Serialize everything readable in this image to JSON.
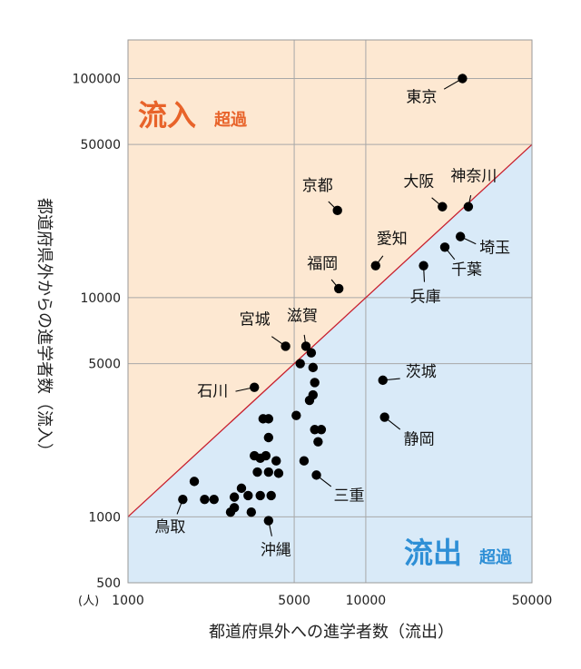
{
  "chart_data": {
    "type": "scatter",
    "x_scale": "log",
    "y_scale": "log",
    "xlim": [
      1000,
      50000
    ],
    "ylim": [
      500,
      150000
    ],
    "xlabel": "都道府県外への進学者数（流出）",
    "ylabel": "都道府県外からの進学者数（流入）",
    "unit_label": "(人)",
    "x_ticks": [
      "1000",
      "5000",
      "10000",
      "50000"
    ],
    "x_tick_values": [
      1000,
      5000,
      10000,
      50000
    ],
    "y_ticks": [
      "500",
      "1000",
      "5000",
      "10000",
      "50000",
      "100000"
    ],
    "y_tick_values": [
      500,
      1000,
      5000,
      10000,
      50000,
      100000
    ],
    "grid": true,
    "reference_line": "y = x",
    "regions": {
      "inflow": {
        "main": "流入",
        "sub": "超過",
        "color": "#e8632a",
        "fill": "#fde8d2"
      },
      "outflow": {
        "main": "流出",
        "sub": "超過",
        "color": "#2e8fd6",
        "fill": "#d9eaf8"
      }
    },
    "labeled_points": [
      {
        "name": "東京",
        "x": 25500,
        "y": 100000
      },
      {
        "name": "京都",
        "x": 7600,
        "y": 25000
      },
      {
        "name": "大阪",
        "x": 21000,
        "y": 26000
      },
      {
        "name": "神奈川",
        "x": 27000,
        "y": 26000
      },
      {
        "name": "愛知",
        "x": 11000,
        "y": 14000
      },
      {
        "name": "埼玉",
        "x": 25000,
        "y": 19000
      },
      {
        "name": "千葉",
        "x": 21500,
        "y": 17000
      },
      {
        "name": "兵庫",
        "x": 17500,
        "y": 14000
      },
      {
        "name": "福岡",
        "x": 7700,
        "y": 11000
      },
      {
        "name": "宮城",
        "x": 4600,
        "y": 6000
      },
      {
        "name": "滋賀",
        "x": 5600,
        "y": 6000
      },
      {
        "name": "石川",
        "x": 3400,
        "y": 3900
      },
      {
        "name": "茨城",
        "x": 11800,
        "y": 4200
      },
      {
        "name": "静岡",
        "x": 12000,
        "y": 2850
      },
      {
        "name": "三重",
        "x": 6200,
        "y": 1550
      },
      {
        "name": "鳥取",
        "x": 1700,
        "y": 1200
      },
      {
        "name": "沖縄",
        "x": 3900,
        "y": 960
      }
    ],
    "unlabeled_points": [
      {
        "x": 5900,
        "y": 5600
      },
      {
        "x": 5300,
        "y": 5000
      },
      {
        "x": 6000,
        "y": 4800
      },
      {
        "x": 6100,
        "y": 4100
      },
      {
        "x": 6000,
        "y": 3600
      },
      {
        "x": 5800,
        "y": 3400
      },
      {
        "x": 5100,
        "y": 2900
      },
      {
        "x": 3700,
        "y": 2800
      },
      {
        "x": 3900,
        "y": 2800
      },
      {
        "x": 6100,
        "y": 2500
      },
      {
        "x": 6500,
        "y": 2500
      },
      {
        "x": 3900,
        "y": 2300
      },
      {
        "x": 6300,
        "y": 2200
      },
      {
        "x": 3400,
        "y": 1900
      },
      {
        "x": 3600,
        "y": 1850
      },
      {
        "x": 3800,
        "y": 1900
      },
      {
        "x": 4200,
        "y": 1800
      },
      {
        "x": 5500,
        "y": 1800
      },
      {
        "x": 3500,
        "y": 1600
      },
      {
        "x": 3900,
        "y": 1600
      },
      {
        "x": 4300,
        "y": 1580
      },
      {
        "x": 1900,
        "y": 1450
      },
      {
        "x": 2100,
        "y": 1200
      },
      {
        "x": 2300,
        "y": 1200
      },
      {
        "x": 2800,
        "y": 1230
      },
      {
        "x": 3200,
        "y": 1250
      },
      {
        "x": 3600,
        "y": 1250
      },
      {
        "x": 4000,
        "y": 1250
      },
      {
        "x": 2700,
        "y": 1050
      },
      {
        "x": 2800,
        "y": 1100
      },
      {
        "x": 3300,
        "y": 1050
      },
      {
        "x": 3000,
        "y": 1350
      }
    ]
  }
}
